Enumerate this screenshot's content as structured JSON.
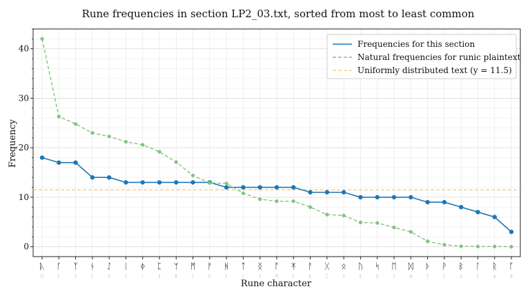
{
  "chart_data": {
    "type": "line",
    "title": "Rune frequencies in section LP2_03.txt, sorted from most to least common",
    "xlabel": "Rune character",
    "ylabel": "Frequency",
    "ylim": [
      -2,
      44
    ],
    "y_ticks": [
      0,
      10,
      20,
      30,
      40
    ],
    "grid": true,
    "legend_position": "top-right",
    "categories": [
      "ᚣ",
      "ᚴ",
      "ᛉ",
      "ᚾ",
      "ᛇ",
      "ᛁ",
      "ᛄ",
      "ᛈ",
      "ᛘ",
      "ᛗ",
      "ᚠ",
      "ᚻ",
      "ᛏ",
      "ᛝ",
      "ᚩ",
      "ᛡ",
      "ᚨ",
      "ᚷ",
      "ᛟ",
      "ᚢ",
      "ᛋ",
      "ᛖ",
      "ᛞ",
      "ᚦ",
      "ᚹ",
      "ᛒ",
      "ᛚ",
      "ᚱ",
      "ᚪ"
    ],
    "secondary_labels": [
      "ᛖ",
      "ᚠ",
      "ᚹ",
      "ᛏ",
      "ᛋ",
      "ᚾ",
      "ᛁ",
      "ᚱ",
      "ᚻ",
      "ᚴ",
      "ᚢ",
      "ᚦ",
      "ᛚ",
      "ᚹ",
      "ᛗ",
      "ᚹ",
      "ᛒ",
      "ᛈ",
      "ᚷ",
      "ᛒ",
      "ᛝ",
      "ᛏ",
      "ᛄ",
      "ᛉ",
      "ᛇ",
      "ᛟ",
      "ᚠ",
      "ᛄ",
      "ᛄ"
    ],
    "series": [
      {
        "name": "Frequencies for this section",
        "color": "#1f77b4",
        "style": "solid",
        "values": [
          18,
          17,
          17,
          14,
          14,
          13,
          13,
          13,
          13,
          13,
          13,
          12,
          12,
          12,
          12,
          12,
          11,
          11,
          11,
          10,
          10,
          10,
          10,
          9,
          9,
          8,
          7,
          6,
          3
        ]
      },
      {
        "name": "Natural frequencies for runic plaintext",
        "color": "#7fc47f",
        "style": "dashed",
        "values": [
          42,
          26.3,
          24.8,
          23,
          22.3,
          21.2,
          20.6,
          19.2,
          17.1,
          14.4,
          12.9,
          12.8,
          10.8,
          9.6,
          9.2,
          9.2,
          8,
          6.5,
          6.3,
          4.9,
          4.8,
          3.9,
          3,
          1.1,
          0.4,
          0.1,
          0.05,
          0.05,
          0
        ]
      }
    ],
    "reference_line": {
      "name": "Uniformly distributed text (y = 11.5)",
      "y": 11.5,
      "color": "#f2c96b",
      "style": "dashed"
    }
  }
}
